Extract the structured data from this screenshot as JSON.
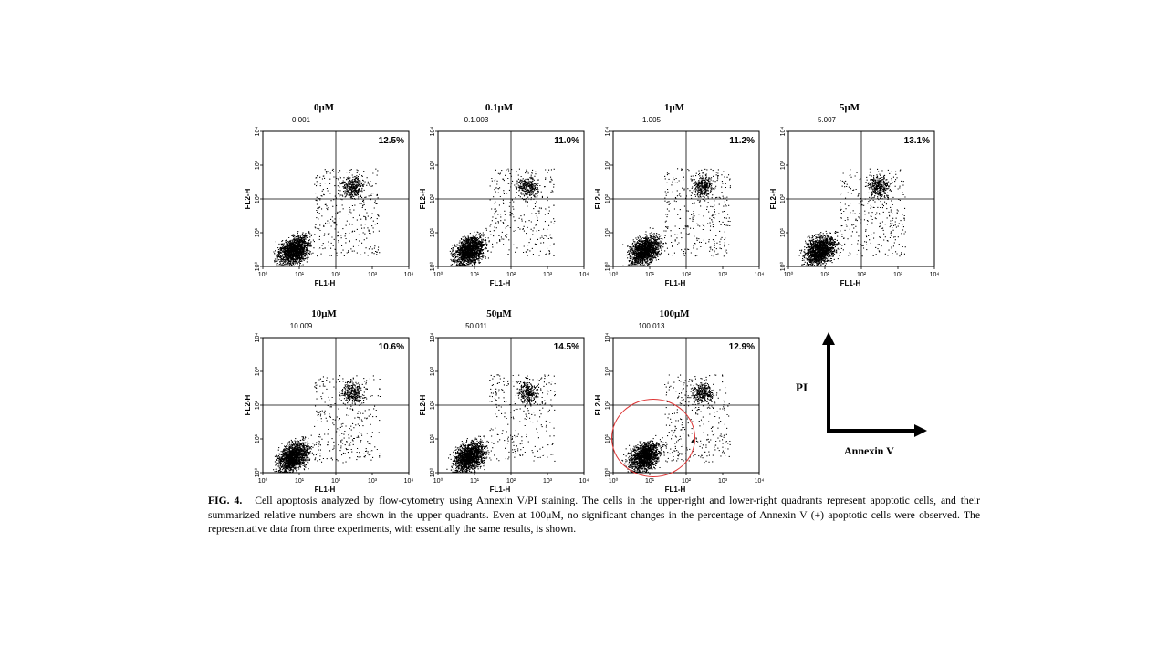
{
  "figure": {
    "caption_label": "FIG. 4.",
    "caption_text": "Cell apoptosis analyzed by flow-cytometry using Annexin V/PI staining. The cells in the upper-right and lower-right quadrants represent apoptotic cells, and their summarized relative numbers are shown in the upper quadrants. Even at 100μM, no significant changes in the percentage of Annexin V (+) apoptotic cells were observed. The representative data from three experiments, with essentially the same results, is shown.",
    "pi_label": "PI",
    "annexin_label": "Annexin V",
    "axis_x_label": "FL1-H",
    "axis_y_label": "FL2-H",
    "ticks": [
      "10⁰",
      "10¹",
      "10²",
      "10³",
      "10⁴"
    ],
    "highlight_color": "#dd3333"
  },
  "chart_data": [
    {
      "type": "scatter",
      "title": "0μM",
      "sample_id": "0.001",
      "xlabel": "FL1-H",
      "ylabel": "FL2-H",
      "xscale": "log",
      "yscale": "log",
      "xlim": [
        1,
        10000
      ],
      "ylim": [
        1,
        10000
      ],
      "upper_right_percent": "12.5%",
      "quadrant_gate": {
        "x": 100,
        "y": 100
      }
    },
    {
      "type": "scatter",
      "title": "0.1μM",
      "sample_id": "0.1.003",
      "xlabel": "FL1-H",
      "ylabel": "FL2-H",
      "xscale": "log",
      "yscale": "log",
      "xlim": [
        1,
        10000
      ],
      "ylim": [
        1,
        10000
      ],
      "upper_right_percent": "11.0%",
      "quadrant_gate": {
        "x": 100,
        "y": 100
      }
    },
    {
      "type": "scatter",
      "title": "1μM",
      "sample_id": "1.005",
      "xlabel": "FL1-H",
      "ylabel": "FL2-H",
      "xscale": "log",
      "yscale": "log",
      "xlim": [
        1,
        10000
      ],
      "ylim": [
        1,
        10000
      ],
      "upper_right_percent": "11.2%",
      "quadrant_gate": {
        "x": 100,
        "y": 100
      }
    },
    {
      "type": "scatter",
      "title": "5μM",
      "sample_id": "5.007",
      "xlabel": "FL1-H",
      "ylabel": "FL2-H",
      "xscale": "log",
      "yscale": "log",
      "xlim": [
        1,
        10000
      ],
      "ylim": [
        1,
        10000
      ],
      "upper_right_percent": "13.1%",
      "quadrant_gate": {
        "x": 100,
        "y": 100
      }
    },
    {
      "type": "scatter",
      "title": "10μM",
      "sample_id": "10.009",
      "xlabel": "FL1-H",
      "ylabel": "FL2-H",
      "xscale": "log",
      "yscale": "log",
      "xlim": [
        1,
        10000
      ],
      "ylim": [
        1,
        10000
      ],
      "upper_right_percent": "10.6%",
      "quadrant_gate": {
        "x": 100,
        "y": 100
      }
    },
    {
      "type": "scatter",
      "title": "50μM",
      "sample_id": "50.011",
      "xlabel": "FL1-H",
      "ylabel": "FL2-H",
      "xscale": "log",
      "yscale": "log",
      "xlim": [
        1,
        10000
      ],
      "ylim": [
        1,
        10000
      ],
      "upper_right_percent": "14.5%",
      "quadrant_gate": {
        "x": 100,
        "y": 100
      }
    },
    {
      "type": "scatter",
      "title": "100μM",
      "sample_id": "100.013",
      "xlabel": "FL1-H",
      "ylabel": "FL2-H",
      "xscale": "log",
      "yscale": "log",
      "xlim": [
        1,
        10000
      ],
      "ylim": [
        1,
        10000
      ],
      "upper_right_percent": "12.9%",
      "quadrant_gate": {
        "x": 100,
        "y": 100
      }
    }
  ]
}
